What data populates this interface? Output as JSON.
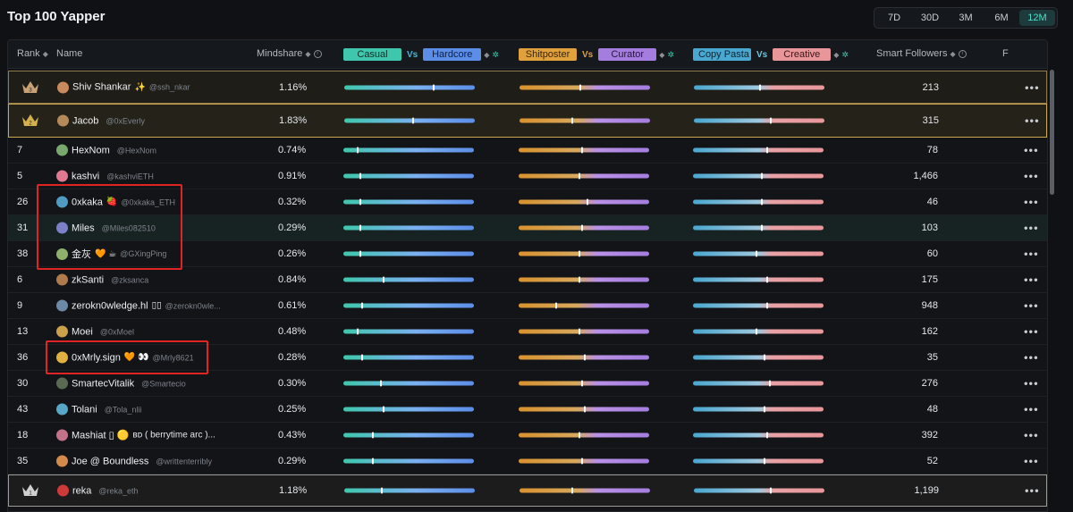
{
  "title": "Top 100 Yapper",
  "time_ranges": [
    {
      "label": "7D",
      "active": false
    },
    {
      "label": "30D",
      "active": false
    },
    {
      "label": "3M",
      "active": false
    },
    {
      "label": "6M",
      "active": false
    },
    {
      "label": "12M",
      "active": true
    }
  ],
  "columns": {
    "rank": "Rank",
    "name": "Name",
    "mindshare": "Mindshare",
    "casual": "Casual",
    "vs": "Vs",
    "hardcore": "Hardcore",
    "shitposter": "Shitposter",
    "curator": "Curator",
    "copy_pasta": "Copy Pasta",
    "creative": "Creative",
    "smart_followers": "Smart Followers",
    "more": "F"
  },
  "colors": {
    "casual": "#3fc7ad",
    "hardcore": "#5c8ee8",
    "shitposter": "#e0a13c",
    "curator": "#a57ddf",
    "copy_pasta": "#4aa7cf",
    "creative": "#e8969a",
    "highlight_box": "#e02424"
  },
  "rows": [
    {
      "rank": "3",
      "crown": "bronze",
      "name": "Shiv Shankar",
      "badge": "✨",
      "handle": "@ssh_nkar",
      "mindshare": "1.16%",
      "followers": "213",
      "b1": 0.68,
      "b2": 0.46,
      "b3": 0.5
    },
    {
      "rank": "2",
      "crown": "gold",
      "name": "Jacob",
      "badge": "",
      "handle": "@0xEverly",
      "mindshare": "1.83%",
      "followers": "315",
      "b1": 0.52,
      "b2": 0.4,
      "b3": 0.58
    },
    {
      "rank": "7",
      "name": "HexNom",
      "badge": "",
      "handle": "@HexNom",
      "mindshare": "0.74%",
      "followers": "78",
      "b1": 0.1,
      "b2": 0.48,
      "b3": 0.56
    },
    {
      "rank": "5",
      "name": "kashvi",
      "badge": "",
      "handle": "@kashviETH",
      "mindshare": "0.91%",
      "followers": "1,466",
      "b1": 0.12,
      "b2": 0.46,
      "b3": 0.52
    },
    {
      "rank": "26",
      "name": "0xkaka",
      "badge": "🍓",
      "handle": "@0xkaka_ETH",
      "mindshare": "0.32%",
      "followers": "46",
      "b1": 0.12,
      "b2": 0.52,
      "b3": 0.52
    },
    {
      "rank": "31",
      "name": "Miles",
      "badge": "",
      "handle": "@Miles082510",
      "mindshare": "0.29%",
      "followers": "103",
      "b1": 0.12,
      "b2": 0.48,
      "b3": 0.52
    },
    {
      "rank": "38",
      "name": "金灰",
      "badge": "🧡 ☕",
      "handle": "@GXingPing",
      "mindshare": "0.26%",
      "followers": "60",
      "b1": 0.12,
      "b2": 0.46,
      "b3": 0.48
    },
    {
      "rank": "6",
      "name": "zkSanti",
      "badge": "",
      "handle": "@zksanca",
      "mindshare": "0.84%",
      "followers": "175",
      "b1": 0.3,
      "b2": 0.46,
      "b3": 0.56
    },
    {
      "rank": "9",
      "name": "zerokn0wledge.hl",
      "badge": "▯▯",
      "handle": "@zerokn0wle...",
      "mindshare": "0.61%",
      "followers": "948",
      "b1": 0.14,
      "b2": 0.28,
      "b3": 0.56
    },
    {
      "rank": "13",
      "name": "Moei",
      "badge": "",
      "handle": "@0xMoel",
      "mindshare": "0.48%",
      "followers": "162",
      "b1": 0.1,
      "b2": 0.46,
      "b3": 0.48
    },
    {
      "rank": "36",
      "name": "0xMrly.sign",
      "badge": "🧡 👀",
      "handle": "@Mrly8621",
      "mindshare": "0.28%",
      "followers": "35",
      "b1": 0.14,
      "b2": 0.5,
      "b3": 0.54
    },
    {
      "rank": "30",
      "name": "SmartecVitalik",
      "badge": "",
      "handle": "@Smartecio",
      "mindshare": "0.30%",
      "followers": "276",
      "b1": 0.28,
      "b2": 0.48,
      "b3": 0.58
    },
    {
      "rank": "43",
      "name": "Tolani",
      "badge": "",
      "handle": "@Tola_nlii",
      "mindshare": "0.25%",
      "followers": "48",
      "b1": 0.3,
      "b2": 0.5,
      "b3": 0.54
    },
    {
      "rank": "18",
      "name": "Mashiat ▯ 🟡",
      "badge": "ʙᴅ ( berrytime arc )...",
      "handle": "",
      "mindshare": "0.43%",
      "followers": "392",
      "b1": 0.22,
      "b2": 0.46,
      "b3": 0.56
    },
    {
      "rank": "35",
      "name": "Joe @ Boundless",
      "badge": "",
      "handle": "@writtenterribly",
      "mindshare": "0.29%",
      "followers": "52",
      "b1": 0.22,
      "b2": 0.48,
      "b3": 0.54
    },
    {
      "rank": "1",
      "crown": "silver",
      "name": "reka",
      "badge": "",
      "handle": "@reka_eth",
      "mindshare": "1.18%",
      "followers": "1,199",
      "b1": 0.28,
      "b2": 0.4,
      "b3": 0.58
    }
  ]
}
